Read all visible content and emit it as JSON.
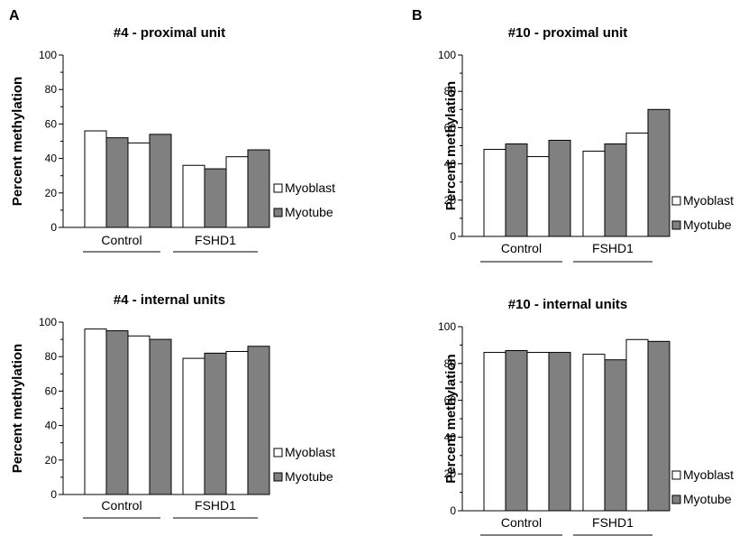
{
  "panel_labels": {
    "A": "A",
    "B": "B"
  },
  "colors": {
    "myoblast": "#ffffff",
    "myotube": "#808080",
    "outline": "#000000"
  },
  "chart_data": [
    {
      "id": "a-top",
      "type": "bar",
      "title": "#4 - proximal unit",
      "ylabel": "Percent methylation",
      "ylim": [
        0,
        100
      ],
      "yticks": [
        "0",
        "20",
        "40",
        "60",
        "80",
        "100"
      ],
      "groups": [
        "Control",
        "FSHD1"
      ],
      "series": [
        {
          "name": "Myoblast",
          "values": [
            56,
            49,
            36,
            41
          ]
        },
        {
          "name": "Myotube",
          "values": [
            52,
            54,
            34,
            45
          ]
        }
      ],
      "legend": [
        "Myoblast",
        "Myotube"
      ],
      "grid": false
    },
    {
      "id": "a-bottom",
      "type": "bar",
      "title": "#4 - internal units",
      "ylabel": "Percent methylation",
      "ylim": [
        0,
        100
      ],
      "yticks": [
        "0",
        "20",
        "40",
        "60",
        "80",
        "100"
      ],
      "groups": [
        "Control",
        "FSHD1"
      ],
      "series": [
        {
          "name": "Myoblast",
          "values": [
            96,
            92,
            79,
            83
          ]
        },
        {
          "name": "Myotube",
          "values": [
            95,
            90,
            82,
            86
          ]
        }
      ],
      "legend": [
        "Myoblast",
        "Myotube"
      ],
      "grid": false
    },
    {
      "id": "b-top",
      "type": "bar",
      "title": "#10 - proximal unit",
      "ylabel": "Percent methylation",
      "ylim": [
        0,
        100
      ],
      "yticks": [
        "0",
        "20",
        "40",
        "60",
        "80",
        "100"
      ],
      "groups": [
        "Control",
        "FSHD1"
      ],
      "series": [
        {
          "name": "Myoblast",
          "values": [
            48,
            44,
            47,
            57
          ]
        },
        {
          "name": "Myotube",
          "values": [
            51,
            53,
            51,
            70
          ]
        }
      ],
      "legend": [
        "Myoblast",
        "Myotube"
      ],
      "grid": false
    },
    {
      "id": "b-bottom",
      "type": "bar",
      "title": "#10 - internal units",
      "ylabel": "Percent methylation",
      "ylim": [
        0,
        100
      ],
      "yticks": [
        "0",
        "20",
        "40",
        "60",
        "80",
        "100"
      ],
      "groups": [
        "Control",
        "FSHD1"
      ],
      "series": [
        {
          "name": "Myoblast",
          "values": [
            86,
            86,
            85,
            93
          ]
        },
        {
          "name": "Myotube",
          "values": [
            87,
            86,
            82,
            92
          ]
        }
      ],
      "legend": [
        "Myoblast",
        "Myotube"
      ],
      "grid": false
    }
  ]
}
